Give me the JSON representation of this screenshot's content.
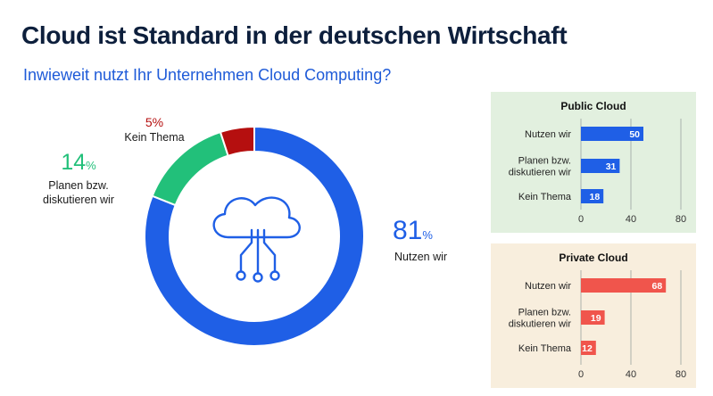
{
  "header": {
    "title": "Cloud ist Standard in der deutschen Wirtschaft",
    "subtitle": "Inwieweit nutzt Ihr Unternehmen Cloud Computing?"
  },
  "donut": {
    "icon": "cloud-circuit-icon",
    "slices": [
      {
        "key": "nutzen",
        "value": 81,
        "pct_text": "81",
        "pct_sign": "%",
        "label_lines": [
          "Nutzen wir"
        ],
        "color": "#1f5fe6",
        "pct_color": "#1f5fe6"
      },
      {
        "key": "planen",
        "value": 14,
        "pct_text": "14",
        "pct_sign": "%",
        "label_lines": [
          "Planen bzw.",
          "diskutieren wir"
        ],
        "color": "#22c07a",
        "pct_color": "#22c07a"
      },
      {
        "key": "kein",
        "value": 5,
        "pct_text": "5%",
        "pct_sign": "",
        "label_lines": [
          "Kein Thema"
        ],
        "color": "#b50f0f",
        "pct_color": "#b50f0f"
      }
    ]
  },
  "chart_data": [
    {
      "type": "pie",
      "categories": [
        "Nutzen wir",
        "Planen bzw. diskutieren wir",
        "Kein Thema"
      ],
      "values": [
        81,
        14,
        5
      ],
      "colors": [
        "#1f5fe6",
        "#22c07a",
        "#b50f0f"
      ]
    },
    {
      "type": "bar",
      "orientation": "horizontal",
      "title": "Public Cloud",
      "categories": [
        "Nutzen wir",
        "Planen bzw. diskutieren wir",
        "Kein Thema"
      ],
      "category_lines": [
        [
          "Nutzen wir"
        ],
        [
          "Planen bzw.",
          "diskutieren wir"
        ],
        [
          "Kein Thema"
        ]
      ],
      "values": [
        50,
        31,
        18
      ],
      "xlim": [
        0,
        80
      ],
      "xticks": [
        0,
        40,
        80
      ],
      "bar_color": "#1f5fe6",
      "background": "#e2f0df",
      "grid": true
    },
    {
      "type": "bar",
      "orientation": "horizontal",
      "title": "Private Cloud",
      "categories": [
        "Nutzen wir",
        "Planen bzw. diskutieren wir",
        "Kein Thema"
      ],
      "category_lines": [
        [
          "Nutzen wir"
        ],
        [
          "Planen bzw.",
          "diskutieren wir"
        ],
        [
          "Kein Thema"
        ]
      ],
      "values": [
        68,
        19,
        12
      ],
      "xlim": [
        0,
        80
      ],
      "xticks": [
        0,
        40,
        80
      ],
      "bar_color": "#f0554c",
      "background": "#f8eedd",
      "grid": true
    }
  ]
}
